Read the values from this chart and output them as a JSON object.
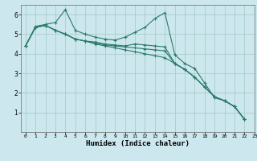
{
  "title": "",
  "xlabel": "Humidex (Indice chaleur)",
  "bg_color": "#cce8ee",
  "grid_color": "#aacccc",
  "line_color": "#2a7a6a",
  "xlim": [
    -0.5,
    23
  ],
  "ylim": [
    0,
    6.5
  ],
  "yticks": [
    1,
    2,
    3,
    4,
    5,
    6
  ],
  "xticks": [
    0,
    1,
    2,
    3,
    4,
    5,
    6,
    7,
    8,
    9,
    10,
    11,
    12,
    13,
    14,
    15,
    16,
    17,
    18,
    19,
    20,
    21,
    22,
    23
  ],
  "series1": [
    4.4,
    5.4,
    5.5,
    5.6,
    6.25,
    5.2,
    5.0,
    4.85,
    4.75,
    4.7,
    4.85,
    5.1,
    5.35,
    5.8,
    6.1,
    3.95,
    3.5,
    3.25,
    2.5,
    1.75,
    1.6,
    1.3,
    0.65
  ],
  "series2": [
    4.4,
    5.35,
    5.45,
    5.2,
    5.0,
    4.75,
    4.65,
    4.6,
    4.5,
    4.45,
    4.4,
    4.5,
    4.45,
    4.4,
    4.35,
    3.5,
    3.2,
    2.8,
    2.3,
    1.8,
    1.6,
    1.3,
    0.65
  ],
  "series3": [
    4.4,
    5.35,
    5.45,
    5.2,
    5.0,
    4.75,
    4.65,
    4.55,
    4.45,
    4.4,
    4.35,
    4.3,
    4.25,
    4.2,
    4.15,
    3.5,
    3.2,
    2.8,
    2.3,
    1.8,
    1.6,
    1.3,
    0.65
  ],
  "series4": [
    4.4,
    5.35,
    5.45,
    5.2,
    5.0,
    4.75,
    4.65,
    4.5,
    4.4,
    4.3,
    4.2,
    4.1,
    4.0,
    3.9,
    3.8,
    3.5,
    3.2,
    2.8,
    2.3,
    1.8,
    1.6,
    1.3,
    0.65
  ]
}
